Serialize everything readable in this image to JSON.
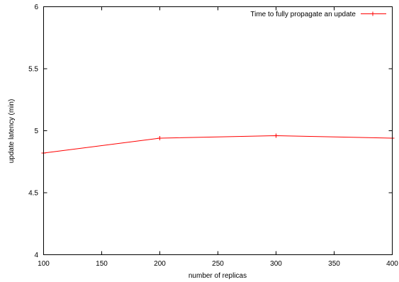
{
  "chart_data": {
    "type": "line",
    "title": "",
    "xlabel": "number of replicas",
    "ylabel": "update latency (min)",
    "xlim": [
      100,
      400
    ],
    "ylim": [
      4,
      6
    ],
    "xticks": [
      "100",
      "150",
      "200",
      "250",
      "300",
      "350",
      "400"
    ],
    "yticks": [
      "4",
      "4.5",
      "5",
      "5.5",
      "6"
    ],
    "grid": false,
    "legend_position": "top-right",
    "series": [
      {
        "name": "Time to fully propagate an update",
        "color": "#ff0000",
        "marker": "plus",
        "x": [
          100,
          200,
          300,
          400
        ],
        "y": [
          4.82,
          4.94,
          4.96,
          4.94
        ]
      }
    ]
  }
}
